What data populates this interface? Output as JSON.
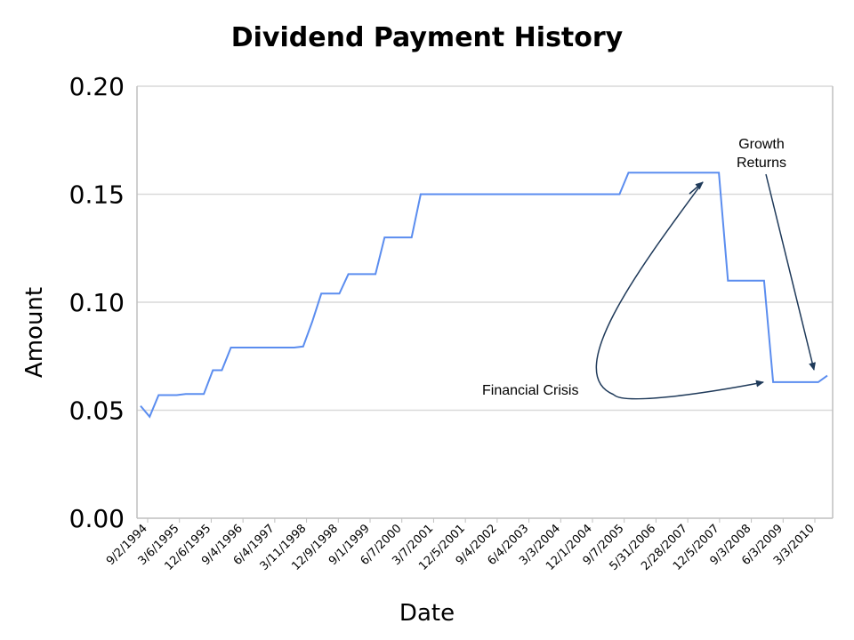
{
  "chart_data": {
    "type": "line",
    "title": "Dividend Payment History",
    "xlabel": "Date",
    "ylabel": "Amount",
    "ylim": [
      0,
      0.2
    ],
    "yticks": [
      "0.00",
      "0.05",
      "0.10",
      "0.15",
      "0.20"
    ],
    "grid": "horizontal",
    "legend": "none",
    "line_color": "#5b8def",
    "x_tick_labels": [
      "9/2/1994",
      "3/6/1995",
      "12/6/1995",
      "9/4/1996",
      "6/4/1997",
      "3/11/1998",
      "12/9/1998",
      "9/1/1999",
      "6/7/2000",
      "3/7/2001",
      "12/5/2001",
      "9/4/2002",
      "6/4/2003",
      "3/3/2004",
      "12/1/2004",
      "9/7/2005",
      "5/31/2006",
      "2/28/2007",
      "12/5/2007",
      "9/3/2008",
      "6/3/2009",
      "3/3/2010"
    ],
    "series": [
      {
        "values": [
          0.052,
          0.047,
          0.057,
          0.057,
          0.057,
          0.0575,
          0.0575,
          0.0575,
          0.0685,
          0.0685,
          0.079,
          0.079,
          0.079,
          0.079,
          0.079,
          0.079,
          0.079,
          0.079,
          0.0795,
          0.091,
          0.104,
          0.104,
          0.104,
          0.113,
          0.113,
          0.113,
          0.113,
          0.13,
          0.13,
          0.13,
          0.13,
          0.15,
          0.15,
          0.15,
          0.15,
          0.15,
          0.15,
          0.15,
          0.15,
          0.15,
          0.15,
          0.15,
          0.15,
          0.15,
          0.15,
          0.15,
          0.15,
          0.15,
          0.15,
          0.15,
          0.15,
          0.15,
          0.15,
          0.15,
          0.16,
          0.16,
          0.16,
          0.16,
          0.16,
          0.16,
          0.16,
          0.16,
          0.16,
          0.16,
          0.16,
          0.11,
          0.11,
          0.11,
          0.11,
          0.11,
          0.063,
          0.063,
          0.063,
          0.063,
          0.063,
          0.063,
          0.066
        ]
      }
    ],
    "annotations": [
      {
        "text": "Financial Crisis"
      },
      {
        "text_lines": [
          "Growth",
          "Returns"
        ]
      }
    ]
  }
}
